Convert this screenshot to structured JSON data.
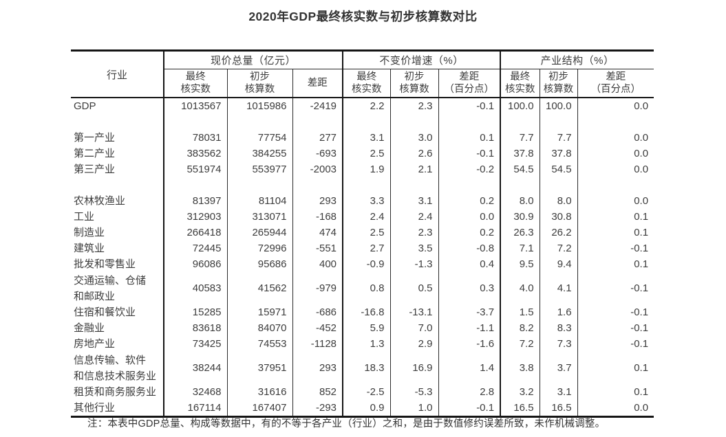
{
  "title": "2020年GDP最终核实数与初步核算数对比",
  "table": {
    "row_header": "行业",
    "groups": [
      {
        "label": "现价总量（亿元）",
        "columns": [
          "最终\n核实数",
          "初步\n核算数",
          "差距"
        ]
      },
      {
        "label": "不变价增速（%）",
        "columns": [
          "最终\n核实数",
          "初步\n核算数",
          "差距\n（百分点）"
        ]
      },
      {
        "label": "产业结构（%）",
        "columns": [
          "最终\n核实数",
          "初步\n核算数",
          "差距\n（百分点）"
        ]
      }
    ],
    "rows": [
      {
        "label": "GDP",
        "values": [
          "1013567",
          "1015986",
          "-2419",
          "2.2",
          "2.3",
          "-0.1",
          "100.0",
          "100.0",
          "0.0"
        ]
      },
      {
        "gap": true
      },
      {
        "label": "第一产业",
        "values": [
          "78031",
          "77754",
          "277",
          "3.1",
          "3.0",
          "0.1",
          "7.7",
          "7.7",
          "0.0"
        ]
      },
      {
        "label": "第二产业",
        "values": [
          "383562",
          "384255",
          "-693",
          "2.5",
          "2.6",
          "-0.1",
          "37.8",
          "37.8",
          "0.0"
        ]
      },
      {
        "label": "第三产业",
        "values": [
          "551974",
          "553977",
          "-2003",
          "1.9",
          "2.1",
          "-0.2",
          "54.5",
          "54.5",
          "0.0"
        ]
      },
      {
        "gap": true
      },
      {
        "label": "农林牧渔业",
        "values": [
          "81397",
          "81104",
          "293",
          "3.3",
          "3.1",
          "0.2",
          "8.0",
          "8.0",
          "0.0"
        ]
      },
      {
        "label": "工业",
        "values": [
          "312903",
          "313071",
          "-168",
          "2.4",
          "2.4",
          "0.0",
          "30.9",
          "30.8",
          "0.1"
        ]
      },
      {
        "label": "制造业",
        "indent": true,
        "values": [
          "266418",
          "265944",
          "474",
          "2.5",
          "2.3",
          "0.2",
          "26.3",
          "26.2",
          "0.1"
        ]
      },
      {
        "label": "建筑业",
        "values": [
          "72445",
          "72996",
          "-551",
          "2.7",
          "3.5",
          "-0.8",
          "7.1",
          "7.2",
          "-0.1"
        ]
      },
      {
        "label": "批发和零售业",
        "values": [
          "96086",
          "95686",
          "400",
          "-0.9",
          "-1.3",
          "0.4",
          "9.5",
          "9.4",
          "0.1"
        ]
      },
      {
        "label": "交通运输、仓储\n和邮政业",
        "two_line": true,
        "values": [
          "40583",
          "41562",
          "-979",
          "0.8",
          "0.5",
          "0.3",
          "4.0",
          "4.1",
          "-0.1"
        ]
      },
      {
        "label": "住宿和餐饮业",
        "values": [
          "15285",
          "15971",
          "-686",
          "-16.8",
          "-13.1",
          "-3.7",
          "1.5",
          "1.6",
          "-0.1"
        ]
      },
      {
        "label": "金融业",
        "values": [
          "83618",
          "84070",
          "-452",
          "5.9",
          "7.0",
          "-1.1",
          "8.2",
          "8.3",
          "-0.1"
        ]
      },
      {
        "label": "房地产业",
        "values": [
          "73425",
          "74553",
          "-1128",
          "1.3",
          "2.9",
          "-1.6",
          "7.2",
          "7.3",
          "-0.1"
        ]
      },
      {
        "label": "信息传输、软件\n和信息技术服务业",
        "two_line": true,
        "values": [
          "38244",
          "37951",
          "293",
          "18.3",
          "16.9",
          "1.4",
          "3.8",
          "3.7",
          "0.1"
        ]
      },
      {
        "label": "租赁和商务服务业",
        "values": [
          "32468",
          "31616",
          "852",
          "-2.5",
          "-5.3",
          "2.8",
          "3.2",
          "3.1",
          "0.1"
        ]
      },
      {
        "label": "其他行业",
        "values": [
          "167114",
          "167407",
          "-293",
          "0.9",
          "1.0",
          "-0.1",
          "16.5",
          "16.5",
          "0.0"
        ]
      }
    ]
  },
  "note": "注：本表中GDP总量、构成等数据中，有的不等于各产业（行业）之和，是由于数值修约误差所致，未作机械调整。"
}
